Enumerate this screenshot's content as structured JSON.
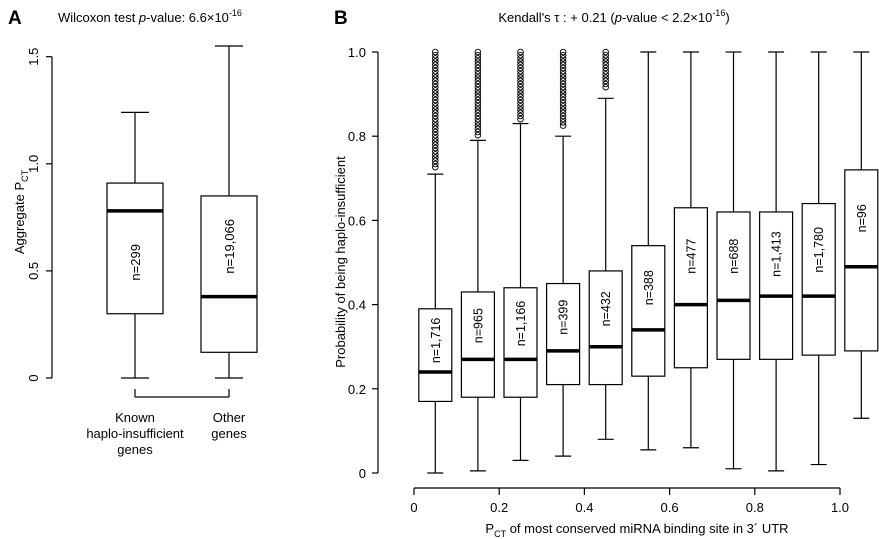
{
  "chart_data": [
    {
      "panel_label": "A",
      "type": "boxplot",
      "title_prefix": "Wilcoxon test ",
      "title_italic": "p",
      "title_suffix": "-value: 6.6×10",
      "title_exp": "-16",
      "xlabel": "",
      "ylabel_main": "Aggregate P",
      "ylabel_sub": "CT",
      "ylim": [
        0,
        1.55
      ],
      "yticks": [
        0,
        0.5,
        1.0,
        1.5
      ],
      "ytick_labels": [
        "0",
        "0.5",
        "1.0",
        "1.5"
      ],
      "categories": [
        [
          "Known",
          "haplo-insufficient",
          "genes"
        ],
        [
          "Other",
          "genes"
        ]
      ],
      "boxes": [
        {
          "n_label": "n=299",
          "whisker_low": 0,
          "q1": 0.3,
          "median": 0.78,
          "q3": 0.91,
          "whisker_high": 1.24
        },
        {
          "n_label": "n=19,066",
          "whisker_low": 0,
          "q1": 0.12,
          "median": 0.38,
          "q3": 0.85,
          "whisker_high": 1.55
        }
      ]
    },
    {
      "panel_label": "B",
      "type": "boxplot",
      "title_prefix": "Kendall's τ : + 0.21 (",
      "title_italic": "p",
      "title_suffix": "-value < 2.2×10",
      "title_exp": "-16",
      "title_end": ")",
      "ylabel": "Probability of being haplo-insufficient",
      "xlabel_main": "P",
      "xlabel_sub": "CT",
      "xlabel_rest": " of most conserved miRNA binding site in 3´ UTR",
      "ylim": [
        0,
        1.0
      ],
      "yticks": [
        0,
        0.2,
        0.4,
        0.6,
        0.8,
        1.0
      ],
      "ytick_labels": [
        "0",
        "0.2",
        "0.4",
        "0.6",
        "0.8",
        "1.0"
      ],
      "xlim": [
        0,
        1.0
      ],
      "xticks": [
        0,
        0.2,
        0.4,
        0.6,
        0.8,
        1.0
      ],
      "xtick_labels": [
        "0",
        "0.2",
        "0.4",
        "0.6",
        "0.8",
        "1.0"
      ],
      "boxes": [
        {
          "x": 0.05,
          "n_label": "n=1,716",
          "whisker_low": 0.0,
          "q1": 0.17,
          "median": 0.24,
          "q3": 0.39,
          "whisker_high": 0.71,
          "outliers_from": 0.72
        },
        {
          "x": 0.15,
          "n_label": "n=965",
          "whisker_low": 0.005,
          "q1": 0.18,
          "median": 0.27,
          "q3": 0.43,
          "whisker_high": 0.79,
          "outliers_from": 0.8
        },
        {
          "x": 0.25,
          "n_label": "n=1,166",
          "whisker_low": 0.03,
          "q1": 0.18,
          "median": 0.27,
          "q3": 0.44,
          "whisker_high": 0.83,
          "outliers_from": 0.84
        },
        {
          "x": 0.35,
          "n_label": "n=399",
          "whisker_low": 0.04,
          "q1": 0.21,
          "median": 0.29,
          "q3": 0.45,
          "whisker_high": 0.8,
          "outliers_from": 0.82
        },
        {
          "x": 0.45,
          "n_label": "n=432",
          "whisker_low": 0.08,
          "q1": 0.21,
          "median": 0.3,
          "q3": 0.48,
          "whisker_high": 0.89,
          "outliers_from": 0.91
        },
        {
          "x": 0.55,
          "n_label": "n=388",
          "whisker_low": 0.055,
          "q1": 0.23,
          "median": 0.34,
          "q3": 0.54,
          "whisker_high": 1.0
        },
        {
          "x": 0.65,
          "n_label": "n=477",
          "whisker_low": 0.06,
          "q1": 0.25,
          "median": 0.4,
          "q3": 0.63,
          "whisker_high": 1.0
        },
        {
          "x": 0.75,
          "n_label": "n=688",
          "whisker_low": 0.01,
          "q1": 0.27,
          "median": 0.41,
          "q3": 0.62,
          "whisker_high": 1.0
        },
        {
          "x": 0.85,
          "n_label": "n=1,413",
          "whisker_low": 0.005,
          "q1": 0.27,
          "median": 0.42,
          "q3": 0.62,
          "whisker_high": 1.0
        },
        {
          "x": 0.95,
          "n_label": "n=1,780",
          "whisker_low": 0.02,
          "q1": 0.28,
          "median": 0.42,
          "q3": 0.64,
          "whisker_high": 1.0
        },
        {
          "x": 1.05,
          "n_label": "n=96",
          "whisker_low": 0.13,
          "q1": 0.29,
          "median": 0.49,
          "q3": 0.72,
          "whisker_high": 1.0
        }
      ]
    }
  ]
}
